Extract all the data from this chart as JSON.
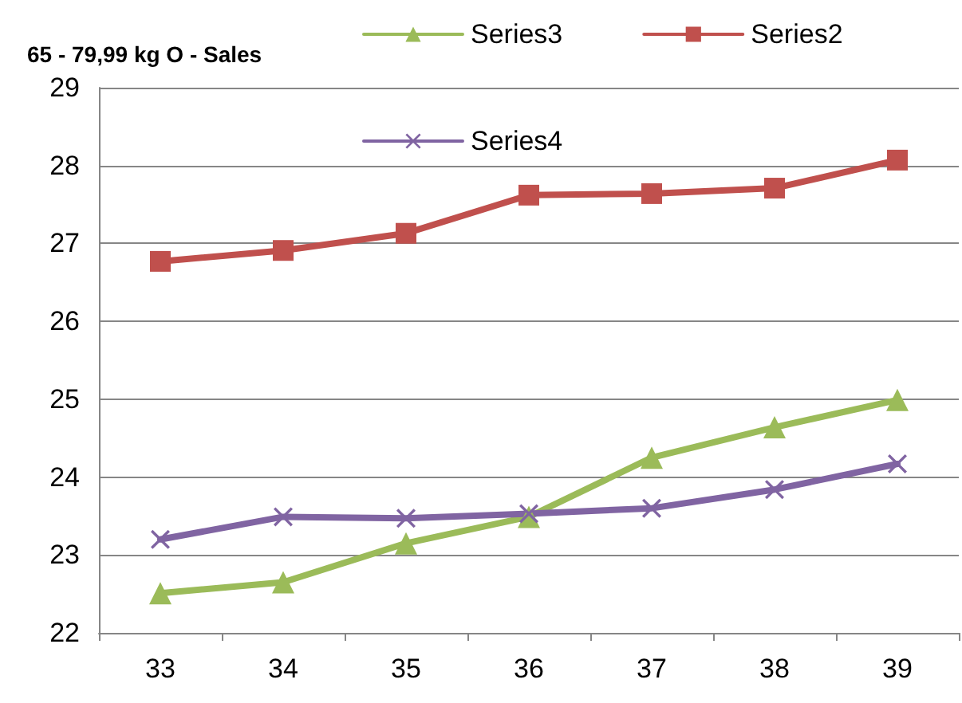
{
  "chart_data": {
    "type": "line",
    "title": "65 - 79,99 kg O - Sales",
    "categories": [
      "33",
      "34",
      "35",
      "36",
      "37",
      "38",
      "39"
    ],
    "series": [
      {
        "name": "Series3",
        "color": "#9bbb59",
        "marker": "triangle",
        "values": [
          22.51,
          22.65,
          23.15,
          23.49,
          24.25,
          24.64,
          24.99
        ]
      },
      {
        "name": "Series2",
        "color": "#c0504d",
        "marker": "square",
        "values": [
          26.77,
          26.91,
          27.13,
          27.62,
          27.64,
          27.71,
          28.07
        ]
      },
      {
        "name": "Series4",
        "color": "#8064a2",
        "marker": "cross",
        "values": [
          23.2,
          23.49,
          23.47,
          23.53,
          23.6,
          23.84,
          24.17
        ]
      }
    ],
    "ylim": [
      22,
      29
    ],
    "yticks": [
      22,
      23,
      24,
      25,
      26,
      27,
      28,
      29
    ],
    "grid": "y",
    "legend": "top right"
  }
}
